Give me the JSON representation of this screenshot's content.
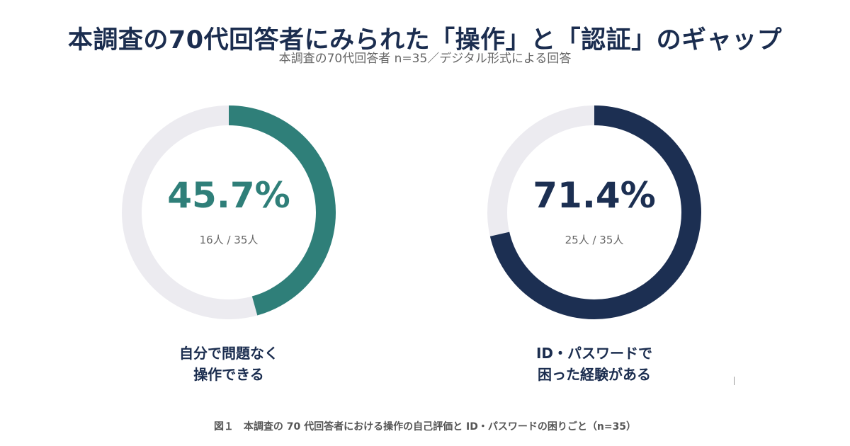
{
  "title": "本調査の70代回答者にみられた「操作」と「認証」のギャップ",
  "subtitle": "本調査の70代回答者 n=35／デジタル形式による回答",
  "caption": "図１　本調査の 70 代回答者における操作の自己評価と ID・パスワードの困りごと（n=35）",
  "colors": {
    "track": "#ecebf0",
    "teal": "#2f7f79",
    "navy": "#1c2f52"
  },
  "chart_data": [
    {
      "type": "pie",
      "value_percent": 45.7,
      "value_label": "45.7%",
      "count": 16,
      "total": 35,
      "count_label": "16人 / 35人",
      "label_lines": [
        "自分で問題なく",
        "操作できる"
      ],
      "color": "#2f7f79"
    },
    {
      "type": "pie",
      "value_percent": 71.4,
      "value_label": "71.4%",
      "count": 25,
      "total": 35,
      "count_label": "25人 / 35人",
      "label_lines": [
        "ID・パスワードで",
        "困った経験がある"
      ],
      "color": "#1c2f52"
    }
  ]
}
